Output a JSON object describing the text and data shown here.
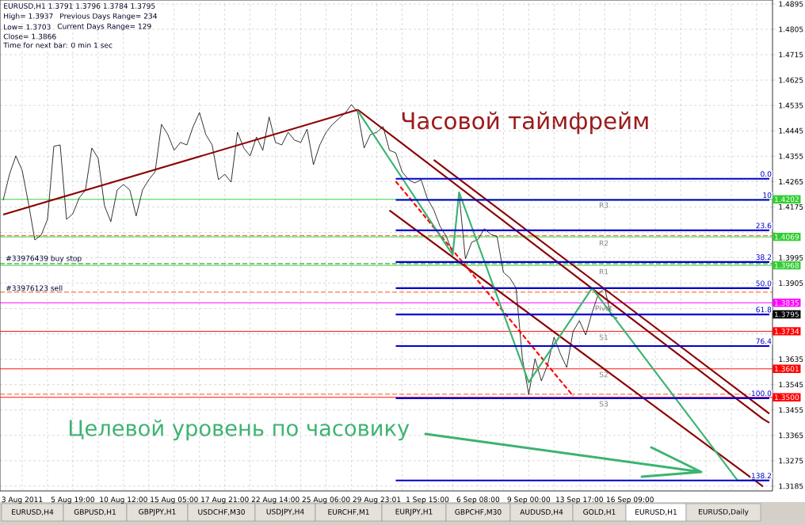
{
  "chart_data": {
    "type": "line",
    "categories": [
      null,
      null,
      null,
      "3 Aug 2011",
      null,
      null,
      null,
      null,
      null,
      null,
      null,
      "5 Aug 19:00",
      null,
      null,
      null,
      null,
      null,
      null,
      null,
      "10 Aug 12:00",
      null,
      null,
      null,
      null,
      null,
      null,
      null,
      "15 Aug 05:00",
      null,
      null,
      null,
      null,
      null,
      null,
      null,
      "17 Aug 21:00",
      null,
      null,
      null,
      null,
      null,
      null,
      null,
      "22 Aug 14:00",
      null,
      null,
      null,
      null,
      null,
      null,
      null,
      "25 Aug 06:00",
      null,
      null,
      null,
      null,
      null,
      null,
      null,
      "29 Aug 23:01",
      null,
      null,
      null,
      null,
      null,
      null,
      null,
      "1 Sep 15:00",
      null,
      null,
      null,
      null,
      null,
      null,
      null,
      "6 Sep 08:00",
      null,
      null,
      null,
      null,
      null,
      null,
      null,
      "9 Sep 00:00",
      null,
      null,
      null,
      null,
      null,
      null,
      null,
      "13 Sep 17:00",
      null,
      null,
      null,
      null,
      null,
      null,
      null,
      "16 Sep 09:00",
      null,
      null,
      null,
      null,
      null,
      null,
      null,
      null,
      null,
      null,
      null,
      null,
      null,
      null,
      null,
      null,
      null,
      null,
      null,
      null,
      null,
      null
    ],
    "ylim": [
      1.3168,
      1.4909
    ],
    "yticks": [
      1.3185,
      1.3275,
      1.3365,
      1.3455,
      1.3545,
      1.3635,
      {
        "value": 1.3725,
        "label": null
      },
      {
        "value": 1.3815,
        "label": null
      },
      1.3905,
      1.3995,
      {
        "value": 1.4085,
        "label": null
      },
      1.4175,
      1.4265,
      1.4355,
      1.4445,
      1.4535,
      1.4625,
      1.4715,
      1.4805,
      1.4895
    ],
    "grid": true,
    "series": [
      {
        "color": "#000000",
        "values": [
          1.4199,
          1.4291,
          1.4356,
          1.4305,
          1.4187,
          1.4058,
          1.4075,
          1.4131,
          1.439,
          1.4395,
          1.4131,
          1.4151,
          1.4207,
          1.4235,
          1.4384,
          1.4348,
          1.4179,
          1.4123,
          1.4235,
          1.4255,
          1.4235,
          1.4143,
          1.4235,
          1.4272,
          1.43,
          1.4468,
          1.4432,
          1.4376,
          1.4404,
          1.4395,
          1.446,
          1.451,
          1.4432,
          1.4395,
          1.4272,
          1.4291,
          1.4263,
          1.444,
          1.4384,
          1.4356,
          1.4423,
          1.4376,
          1.4494,
          1.4404,
          1.4395,
          1.444,
          1.4412,
          1.4404,
          1.4451,
          1.4325,
          1.4395,
          1.444,
          1.4468,
          1.4488,
          1.4508,
          1.4538,
          1.451,
          1.4384,
          1.4432,
          1.444,
          1.446,
          1.4376,
          1.4367,
          1.43,
          1.4272,
          1.426,
          1.4272,
          1.4204,
          1.4165,
          1.4106,
          1.407,
          1.4011,
          1.4221,
          1.3991,
          1.405,
          1.406,
          1.4098,
          1.4078,
          1.407,
          1.3943,
          1.3924,
          1.3887,
          1.3637,
          1.3511,
          1.3637,
          1.3558,
          1.3617,
          1.3713,
          1.3654,
          1.3606,
          1.3733,
          1.3772,
          1.3721,
          1.38,
          1.3867,
          1.3887,
          1.3789,
          1.378,
          null,
          null,
          null,
          null,
          null,
          null,
          null,
          null,
          null,
          null,
          null,
          null,
          null,
          null,
          null,
          null,
          null,
          null,
          null,
          null,
          null,
          null,
          null,
          null
        ]
      },
      {
        "color": "#8b0000",
        "values": [
          1.4148,
          null,
          null,
          null,
          null,
          null,
          null,
          null,
          null,
          null,
          null,
          null,
          null,
          null,
          null,
          null,
          null,
          null,
          null,
          null,
          null,
          null,
          null,
          null,
          null,
          null,
          null,
          null,
          null,
          null,
          null,
          null,
          null,
          null,
          null,
          null,
          null,
          null,
          null,
          null,
          null,
          null,
          null,
          null,
          null,
          null,
          null,
          null,
          null,
          null,
          null,
          null,
          null,
          null,
          null,
          null,
          1.452,
          null,
          null,
          null,
          null,
          null,
          null,
          null,
          null,
          null,
          null,
          null,
          null,
          null,
          null,
          null,
          null,
          null,
          null,
          null,
          null,
          null,
          null,
          null,
          null,
          null,
          null,
          null,
          null,
          null,
          null,
          null,
          null,
          null,
          null,
          null,
          null,
          null,
          null,
          null,
          null,
          null,
          null,
          null,
          null,
          null,
          null,
          null,
          null,
          null,
          null,
          null,
          null,
          null,
          null,
          null,
          null,
          null,
          null,
          null,
          null,
          null,
          null,
          null,
          null,
          null
        ]
      },
      {
        "color": "#8b0000",
        "values": [
          null,
          null,
          null,
          null,
          null,
          null,
          null,
          null,
          null,
          null,
          null,
          null,
          null,
          null,
          null,
          null,
          null,
          null,
          null,
          null,
          null,
          null,
          null,
          null,
          null,
          null,
          null,
          null,
          null,
          null,
          null,
          null,
          null,
          null,
          null,
          null,
          null,
          null,
          null,
          null,
          null,
          null,
          null,
          null,
          null,
          null,
          null,
          null,
          null,
          null,
          null,
          null,
          null,
          null,
          null,
          null,
          1.452,
          null,
          null,
          null,
          null,
          null,
          null,
          null,
          null,
          null,
          null,
          null,
          null,
          null,
          null,
          null,
          null,
          null,
          null,
          null,
          null,
          null,
          null,
          null,
          null,
          null,
          null,
          null,
          null,
          null,
          null,
          null,
          null,
          null,
          null,
          null,
          null,
          null,
          null,
          null,
          null,
          null,
          null,
          null,
          null,
          null,
          null,
          null,
          null,
          null,
          null,
          null,
          null,
          null,
          null,
          null,
          null,
          null,
          null,
          null,
          null,
          null,
          null,
          null,
          1.3423,
          1.341
        ]
      },
      {
        "color": "#8b0000",
        "values": [
          null,
          null,
          null,
          null,
          null,
          null,
          null,
          null,
          null,
          null,
          null,
          null,
          null,
          null,
          null,
          null,
          null,
          null,
          null,
          null,
          null,
          null,
          null,
          null,
          null,
          null,
          null,
          null,
          null,
          null,
          null,
          null,
          null,
          null,
          null,
          null,
          null,
          null,
          null,
          null,
          null,
          null,
          null,
          null,
          null,
          null,
          null,
          null,
          null,
          null,
          null,
          null,
          null,
          null,
          null,
          null,
          null,
          null,
          null,
          null,
          null,
          null,
          null,
          null,
          null,
          null,
          null,
          null,
          1.4342,
          null,
          null,
          null,
          null,
          null,
          null,
          null,
          null,
          null,
          null,
          null,
          null,
          null,
          null,
          null,
          null,
          null,
          null,
          null,
          null,
          null,
          null,
          null,
          null,
          null,
          null,
          null,
          null,
          null,
          null,
          null,
          null,
          null,
          null,
          null,
          null,
          null,
          null,
          null,
          null,
          null,
          null,
          null,
          null,
          null,
          null,
          null,
          null,
          null,
          null,
          null,
          null,
          1.3442
        ]
      },
      {
        "color": "#8b0000",
        "values": [
          null,
          null,
          null,
          null,
          null,
          null,
          null,
          null,
          null,
          null,
          null,
          null,
          null,
          null,
          null,
          null,
          null,
          null,
          null,
          null,
          null,
          null,
          null,
          null,
          null,
          null,
          null,
          null,
          null,
          null,
          null,
          null,
          null,
          null,
          null,
          null,
          null,
          null,
          null,
          null,
          null,
          null,
          null,
          null,
          null,
          null,
          null,
          null,
          null,
          null,
          null,
          null,
          null,
          null,
          null,
          null,
          null,
          null,
          null,
          null,
          null,
          1.4163,
          null,
          null,
          null,
          null,
          null,
          null,
          null,
          null,
          null,
          null,
          null,
          null,
          null,
          null,
          null,
          null,
          null,
          null,
          null,
          null,
          null,
          null,
          null,
          null,
          null,
          null,
          null,
          null,
          null,
          null,
          null,
          null,
          null,
          null,
          null,
          null,
          null,
          null,
          null,
          null,
          null,
          null,
          null,
          null,
          null,
          null,
          null,
          null,
          null,
          null,
          null,
          null,
          null,
          null,
          null,
          null,
          null,
          null,
          1.3184,
          null
        ]
      },
      {
        "color": "#ff0000",
        "line_style": "dashed",
        "values": [
          null,
          null,
          null,
          null,
          null,
          null,
          null,
          null,
          null,
          null,
          null,
          null,
          null,
          null,
          null,
          null,
          null,
          null,
          null,
          null,
          null,
          null,
          null,
          null,
          null,
          null,
          null,
          null,
          null,
          null,
          null,
          null,
          null,
          null,
          null,
          null,
          null,
          null,
          null,
          null,
          null,
          null,
          null,
          null,
          null,
          null,
          null,
          null,
          null,
          null,
          null,
          null,
          null,
          null,
          null,
          null,
          null,
          null,
          null,
          null,
          null,
          null,
          1.4266,
          null,
          null,
          null,
          null,
          null,
          null,
          null,
          null,
          null,
          null,
          null,
          null,
          null,
          null,
          null,
          null,
          null,
          null,
          null,
          null,
          null,
          null,
          null,
          null,
          null,
          null,
          null,
          1.3505,
          null,
          null,
          null,
          null,
          null,
          null,
          null,
          null,
          null,
          null,
          null,
          null,
          null,
          null,
          null,
          null,
          null,
          null,
          null,
          null,
          null,
          null,
          null,
          null,
          null,
          null,
          null,
          null,
          null,
          null,
          null
        ]
      },
      {
        "color": "#3cb371",
        "values": [
          null,
          null,
          null,
          null,
          null,
          null,
          null,
          null,
          null,
          null,
          null,
          null,
          null,
          null,
          null,
          null,
          null,
          null,
          null,
          null,
          null,
          null,
          null,
          null,
          null,
          null,
          null,
          null,
          null,
          null,
          null,
          null,
          null,
          null,
          null,
          null,
          null,
          null,
          null,
          null,
          null,
          null,
          null,
          null,
          null,
          null,
          null,
          null,
          null,
          null,
          null,
          null,
          null,
          null,
          null,
          null,
          1.4516,
          null,
          null,
          null,
          null,
          null,
          null,
          null,
          null,
          null,
          null,
          null,
          null,
          null,
          null,
          1.4005,
          1.4227,
          null,
          null,
          null,
          null,
          null,
          null,
          null,
          null,
          null,
          null,
          1.3553,
          null,
          null,
          null,
          null,
          null,
          null,
          null,
          null,
          null,
          1.3887,
          null,
          null,
          null,
          null,
          null,
          null,
          null,
          null,
          null,
          null,
          null,
          null,
          null,
          null,
          null,
          null,
          null,
          null,
          null,
          null,
          null,
          null,
          1.3205,
          null,
          null,
          null,
          null,
          1.3205
        ]
      },
      {
        "name": "0.0",
        "color": "#0000cd",
        "values": [
          null,
          null,
          null,
          null,
          null,
          null,
          null,
          null,
          null,
          null,
          null,
          null,
          null,
          null,
          null,
          null,
          null,
          null,
          null,
          null,
          null,
          null,
          null,
          null,
          null,
          null,
          null,
          null,
          null,
          null,
          null,
          null,
          null,
          null,
          null,
          null,
          null,
          null,
          null,
          null,
          null,
          null,
          null,
          null,
          null,
          null,
          null,
          null,
          null,
          null,
          null,
          null,
          null,
          null,
          null,
          null,
          null,
          null,
          null,
          null,
          null,
          null,
          1.4275,
          null,
          null,
          null,
          null,
          null,
          null,
          null,
          null,
          null,
          null,
          null,
          null,
          null,
          null,
          null,
          null,
          null,
          null,
          null,
          null,
          null,
          null,
          null,
          null,
          null,
          null,
          null,
          null,
          null,
          null,
          null,
          null,
          null,
          null,
          null,
          null,
          null,
          null,
          null,
          null,
          null,
          null,
          null,
          null,
          null,
          null,
          null,
          null,
          null,
          null,
          null,
          null,
          null,
          null,
          null,
          null,
          null,
          null,
          1.4275
        ]
      },
      {
        "name": "10",
        "color": "#0000cd",
        "values": [
          null,
          null,
          null,
          null,
          null,
          null,
          null,
          null,
          null,
          null,
          null,
          null,
          null,
          null,
          null,
          null,
          null,
          null,
          null,
          null,
          null,
          null,
          null,
          null,
          null,
          null,
          null,
          null,
          null,
          null,
          null,
          null,
          null,
          null,
          null,
          null,
          null,
          null,
          null,
          null,
          null,
          null,
          null,
          null,
          null,
          null,
          null,
          null,
          null,
          null,
          null,
          null,
          null,
          null,
          null,
          null,
          null,
          null,
          null,
          null,
          null,
          null,
          1.42,
          null,
          null,
          null,
          null,
          null,
          null,
          null,
          null,
          null,
          null,
          null,
          null,
          null,
          null,
          null,
          null,
          null,
          null,
          null,
          null,
          null,
          null,
          null,
          null,
          null,
          null,
          null,
          null,
          null,
          null,
          null,
          null,
          null,
          null,
          null,
          null,
          null,
          null,
          null,
          null,
          null,
          null,
          null,
          null,
          null,
          null,
          null,
          null,
          null,
          null,
          null,
          null,
          null,
          null,
          null,
          null,
          null,
          null,
          1.42
        ]
      },
      {
        "name": "23.6",
        "color": "#0000cd",
        "values": [
          null,
          null,
          null,
          null,
          null,
          null,
          null,
          null,
          null,
          null,
          null,
          null,
          null,
          null,
          null,
          null,
          null,
          null,
          null,
          null,
          null,
          null,
          null,
          null,
          null,
          null,
          null,
          null,
          null,
          null,
          null,
          null,
          null,
          null,
          null,
          null,
          null,
          null,
          null,
          null,
          null,
          null,
          null,
          null,
          null,
          null,
          null,
          null,
          null,
          null,
          null,
          null,
          null,
          null,
          null,
          null,
          null,
          null,
          null,
          null,
          null,
          null,
          1.4092,
          null,
          null,
          null,
          null,
          null,
          null,
          null,
          null,
          null,
          null,
          null,
          null,
          null,
          null,
          null,
          null,
          null,
          null,
          null,
          null,
          null,
          null,
          null,
          null,
          null,
          null,
          null,
          null,
          null,
          null,
          null,
          null,
          null,
          null,
          null,
          null,
          null,
          null,
          null,
          null,
          null,
          null,
          null,
          null,
          null,
          null,
          null,
          null,
          null,
          null,
          null,
          null,
          null,
          null,
          null,
          null,
          null,
          null,
          1.4092
        ]
      },
      {
        "name": "38.2",
        "color": "#0000cd",
        "values": [
          null,
          null,
          null,
          null,
          null,
          null,
          null,
          null,
          null,
          null,
          null,
          null,
          null,
          null,
          null,
          null,
          null,
          null,
          null,
          null,
          null,
          null,
          null,
          null,
          null,
          null,
          null,
          null,
          null,
          null,
          null,
          null,
          null,
          null,
          null,
          null,
          null,
          null,
          null,
          null,
          null,
          null,
          null,
          null,
          null,
          null,
          null,
          null,
          null,
          null,
          null,
          null,
          null,
          null,
          null,
          null,
          null,
          null,
          null,
          null,
          null,
          null,
          1.398,
          null,
          null,
          null,
          null,
          null,
          null,
          null,
          null,
          null,
          null,
          null,
          null,
          null,
          null,
          null,
          null,
          null,
          null,
          null,
          null,
          null,
          null,
          null,
          null,
          null,
          null,
          null,
          null,
          null,
          null,
          null,
          null,
          null,
          null,
          null,
          null,
          null,
          null,
          null,
          null,
          null,
          null,
          null,
          null,
          null,
          null,
          null,
          null,
          null,
          null,
          null,
          null,
          null,
          null,
          null,
          null,
          null,
          null,
          1.398
        ]
      },
      {
        "name": "50.0",
        "color": "#0000cd",
        "values": [
          null,
          null,
          null,
          null,
          null,
          null,
          null,
          null,
          null,
          null,
          null,
          null,
          null,
          null,
          null,
          null,
          null,
          null,
          null,
          null,
          null,
          null,
          null,
          null,
          null,
          null,
          null,
          null,
          null,
          null,
          null,
          null,
          null,
          null,
          null,
          null,
          null,
          null,
          null,
          null,
          null,
          null,
          null,
          null,
          null,
          null,
          null,
          null,
          null,
          null,
          null,
          null,
          null,
          null,
          null,
          null,
          null,
          null,
          null,
          null,
          null,
          null,
          1.3887,
          null,
          null,
          null,
          null,
          null,
          null,
          null,
          null,
          null,
          null,
          null,
          null,
          null,
          null,
          null,
          null,
          null,
          null,
          null,
          null,
          null,
          null,
          null,
          null,
          null,
          null,
          null,
          null,
          null,
          null,
          null,
          null,
          null,
          null,
          null,
          null,
          null,
          null,
          null,
          null,
          null,
          null,
          null,
          null,
          null,
          null,
          null,
          null,
          null,
          null,
          null,
          null,
          null,
          null,
          null,
          null,
          null,
          null,
          1.3887
        ]
      },
      {
        "name": "61.8",
        "color": "#0000cd",
        "values": [
          null,
          null,
          null,
          null,
          null,
          null,
          null,
          null,
          null,
          null,
          null,
          null,
          null,
          null,
          null,
          null,
          null,
          null,
          null,
          null,
          null,
          null,
          null,
          null,
          null,
          null,
          null,
          null,
          null,
          null,
          null,
          null,
          null,
          null,
          null,
          null,
          null,
          null,
          null,
          null,
          null,
          null,
          null,
          null,
          null,
          null,
          null,
          null,
          null,
          null,
          null,
          null,
          null,
          null,
          null,
          null,
          null,
          null,
          null,
          null,
          null,
          null,
          1.3794,
          null,
          null,
          null,
          null,
          null,
          null,
          null,
          null,
          null,
          null,
          null,
          null,
          null,
          null,
          null,
          null,
          null,
          null,
          null,
          null,
          null,
          null,
          null,
          null,
          null,
          null,
          null,
          null,
          null,
          null,
          null,
          null,
          null,
          null,
          null,
          null,
          null,
          null,
          null,
          null,
          null,
          null,
          null,
          null,
          null,
          null,
          null,
          null,
          null,
          null,
          null,
          null,
          null,
          null,
          null,
          null,
          null,
          null,
          1.3794
        ]
      },
      {
        "name": "76.4",
        "color": "#0000cd",
        "values": [
          null,
          null,
          null,
          null,
          null,
          null,
          null,
          null,
          null,
          null,
          null,
          null,
          null,
          null,
          null,
          null,
          null,
          null,
          null,
          null,
          null,
          null,
          null,
          null,
          null,
          null,
          null,
          null,
          null,
          null,
          null,
          null,
          null,
          null,
          null,
          null,
          null,
          null,
          null,
          null,
          null,
          null,
          null,
          null,
          null,
          null,
          null,
          null,
          null,
          null,
          null,
          null,
          null,
          null,
          null,
          null,
          null,
          null,
          null,
          null,
          null,
          null,
          1.3682,
          null,
          null,
          null,
          null,
          null,
          null,
          null,
          null,
          null,
          null,
          null,
          null,
          null,
          null,
          null,
          null,
          null,
          null,
          null,
          null,
          null,
          null,
          null,
          null,
          null,
          null,
          null,
          null,
          null,
          null,
          null,
          null,
          null,
          null,
          null,
          null,
          null,
          null,
          null,
          null,
          null,
          null,
          null,
          null,
          null,
          null,
          null,
          null,
          null,
          null,
          null,
          null,
          null,
          null,
          null,
          null,
          null,
          null,
          1.3682
        ]
      },
      {
        "name": "100.0",
        "color": "#0000cd",
        "values": [
          null,
          null,
          null,
          null,
          null,
          null,
          null,
          null,
          null,
          null,
          null,
          null,
          null,
          null,
          null,
          null,
          null,
          null,
          null,
          null,
          null,
          null,
          null,
          null,
          null,
          null,
          null,
          null,
          null,
          null,
          null,
          null,
          null,
          null,
          null,
          null,
          null,
          null,
          null,
          null,
          null,
          null,
          null,
          null,
          null,
          null,
          null,
          null,
          null,
          null,
          null,
          null,
          null,
          null,
          null,
          null,
          null,
          null,
          null,
          null,
          null,
          null,
          1.3497,
          null,
          null,
          null,
          null,
          null,
          null,
          null,
          null,
          null,
          null,
          null,
          null,
          null,
          null,
          null,
          null,
          null,
          null,
          null,
          null,
          null,
          null,
          null,
          null,
          null,
          null,
          null,
          null,
          null,
          null,
          null,
          null,
          null,
          null,
          null,
          null,
          null,
          null,
          null,
          null,
          null,
          null,
          null,
          null,
          null,
          null,
          null,
          null,
          null,
          null,
          null,
          null,
          null,
          null,
          null,
          null,
          null,
          null,
          1.3497
        ]
      },
      {
        "name": "138.2",
        "color": "#0000cd",
        "values": [
          null,
          null,
          null,
          null,
          null,
          null,
          null,
          null,
          null,
          null,
          null,
          null,
          null,
          null,
          null,
          null,
          null,
          null,
          null,
          null,
          null,
          null,
          null,
          null,
          null,
          null,
          null,
          null,
          null,
          null,
          null,
          null,
          null,
          null,
          null,
          null,
          null,
          null,
          null,
          null,
          null,
          null,
          null,
          null,
          null,
          null,
          null,
          null,
          null,
          null,
          null,
          null,
          null,
          null,
          null,
          null,
          null,
          null,
          null,
          null,
          null,
          null,
          1.3205,
          null,
          null,
          null,
          null,
          null,
          null,
          null,
          null,
          null,
          null,
          null,
          null,
          null,
          null,
          null,
          null,
          null,
          null,
          null,
          null,
          null,
          null,
          null,
          null,
          null,
          null,
          null,
          null,
          null,
          null,
          null,
          null,
          null,
          null,
          null,
          null,
          null,
          null,
          null,
          null,
          null,
          null,
          null,
          null,
          null,
          null,
          null,
          null,
          null,
          null,
          null,
          null,
          null,
          null,
          null,
          null,
          null,
          null,
          1.3205
        ]
      }
    ],
    "ref_lines": [
      {
        "axis": "y",
        "value": 1.4202,
        "label": "1.4202",
        "color": "#32cd32"
      },
      {
        "axis": "y",
        "value": 1.4073,
        "color": "#ff4500",
        "line_style": "dashed"
      },
      {
        "axis": "y",
        "value": 1.4069,
        "label": "1.4069",
        "color": "#32cd32"
      },
      {
        "axis": "y",
        "value": 1.3974,
        "label": "#33976439 buy stop",
        "color": "#008000",
        "line_style": "dashed"
      },
      {
        "axis": "y",
        "value": 1.3968,
        "label": "1.3968",
        "color": "#32cd32"
      },
      {
        "axis": "y",
        "value": 1.3873,
        "label": "#33976123 sell",
        "color": "#ff4500",
        "line_style": "dashed"
      },
      {
        "axis": "y",
        "value": 1.3835,
        "label": "1.3835",
        "color": "#ff00ff"
      },
      {
        "axis": "y",
        "value": 1.3734,
        "label": "1.3734",
        "color": "#ff0000"
      },
      {
        "axis": "y",
        "value": 1.3601,
        "label": "1.3601",
        "color": "#ff0000"
      },
      {
        "axis": "y",
        "value": 1.3511,
        "color": "#ff4500",
        "line_style": "dashed"
      },
      {
        "axis": "y",
        "value": 1.35,
        "label": "1.3500",
        "color": "#ff0000"
      }
    ],
    "annotations": [
      "EURUSD,H1 1.3791 1.3796 1.3784 1.3795",
      "High= 1.3937",
      "Previous Days Range= 234",
      "Low= 1.3703",
      "Current Days Range= 129",
      "Close= 1.3866",
      "Time for next bar: 0 min 1 sec",
      "Часовой таймфрейм",
      "Целевой уровень по часовику",
      "R3",
      "R2",
      "R1",
      "Pivot",
      "S1",
      "S2",
      "S3",
      "1.3795",
      "EURUSD,H4",
      "GBPUSD,H1",
      "GBPJPY,H1",
      "USDCHF,M30",
      "USDJPY,H4",
      "EURCHF,M1",
      "EURJPY,H1",
      "GBPCHF,M30",
      "AUDUSD,H4",
      "GOLD,H1",
      "EURUSD,H1",
      "EURUSD,Daily"
    ]
  }
}
